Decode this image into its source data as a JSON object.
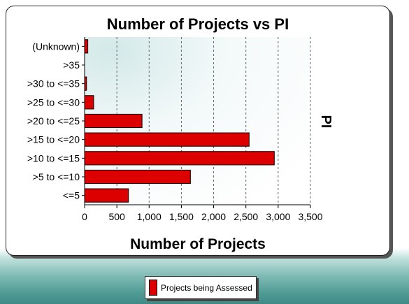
{
  "chart_data": {
    "type": "bar",
    "orientation": "horizontal",
    "title": "Number of Projects vs PI",
    "xlabel": "Number of Projects",
    "ylabel": "PI",
    "categories": [
      "<=5",
      ">5 to <=10",
      ">10 to <=15",
      ">15 to <=20",
      ">20 to <=25",
      ">25 to <=30",
      ">30 to <=35",
      ">35",
      "(Unknown)"
    ],
    "series": [
      {
        "name": "Projects being Assessed",
        "values": [
          680,
          1640,
          2940,
          2550,
          890,
          140,
          30,
          0,
          50
        ]
      }
    ],
    "xlim": [
      0,
      3500
    ],
    "xticks": [
      0,
      500,
      1000,
      1500,
      2000,
      2500,
      3000,
      3500
    ],
    "xtick_labels": [
      "0",
      "500",
      "1,000",
      "1,500",
      "2,000",
      "2,500",
      "3,000",
      "3,500"
    ],
    "grid": "vertical dashed",
    "legend_position": "bottom"
  },
  "colors": {
    "bar_fill": "#dd0000",
    "bar_border": "#000000",
    "plot_background": "#eef6f6",
    "grid": "#666666"
  }
}
